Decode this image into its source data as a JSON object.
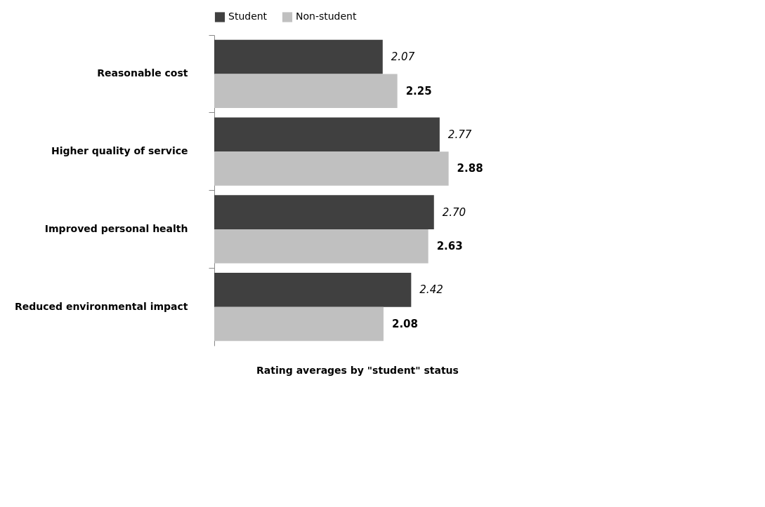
{
  "chart_data": {
    "type": "bar",
    "orientation": "horizontal",
    "xlabel": "Rating averages by \"student\" status",
    "categories": [
      "Reasonable cost",
      "Higher quality of service",
      "Improved personal health",
      "Reduced environmental impact"
    ],
    "series": [
      {
        "name": "Student",
        "color": "#404040",
        "values": [
          2.07,
          2.77,
          2.7,
          2.42
        ],
        "value_labels": [
          "2.07",
          "2.77",
          "2.70",
          "2.42"
        ]
      },
      {
        "name": "Non-student",
        "color": "#c0c0c0",
        "values": [
          2.25,
          2.88,
          2.63,
          2.08
        ],
        "value_labels": [
          "2.25",
          "2.88",
          "2.63",
          "2.08"
        ]
      }
    ],
    "legend": "top"
  }
}
